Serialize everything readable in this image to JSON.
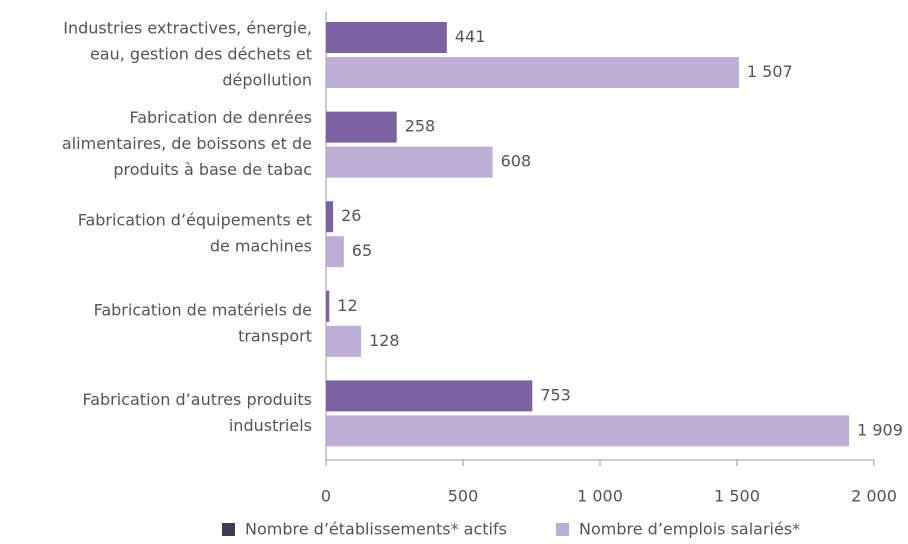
{
  "chart_data": {
    "type": "bar",
    "orientation": "horizontal",
    "categories": [
      [
        "Industries extractives, énergie,",
        "eau, gestion des déchets et",
        "dépollution"
      ],
      [
        "Fabrication de denrées",
        "alimentaires, de boissons et  de",
        "produits à base de tabac"
      ],
      [
        "Fabrication d’équipements et",
        "de machines"
      ],
      [
        "Fabrication de matériels de",
        "transport"
      ],
      [
        "Fabrication d’autres produits",
        "industriels"
      ]
    ],
    "series": [
      {
        "name": "Nombre d’établissements* actifs",
        "color": "#7d62a3",
        "legend_color": "#3e3c55",
        "label_color": "#6f5496",
        "values": [
          441,
          258,
          26,
          12,
          753
        ]
      },
      {
        "name": "Nombre d’emplois salariés*",
        "color": "#bcaed5",
        "legend_color": "#bcaed5",
        "label_color": "#b7a7d2",
        "values": [
          1507,
          608,
          65,
          128,
          1909
        ],
        "value_labels": [
          "1 507",
          "608",
          "65",
          "128",
          "1 909"
        ]
      }
    ],
    "xlim": [
      0,
      2000
    ],
    "xticks": [
      0,
      500,
      {
        "value": 1000,
        "label": "1 000"
      },
      {
        "value": 1500,
        "label": "1 500"
      },
      {
        "value": 2000,
        "label": "2 000"
      }
    ],
    "grid": false
  }
}
